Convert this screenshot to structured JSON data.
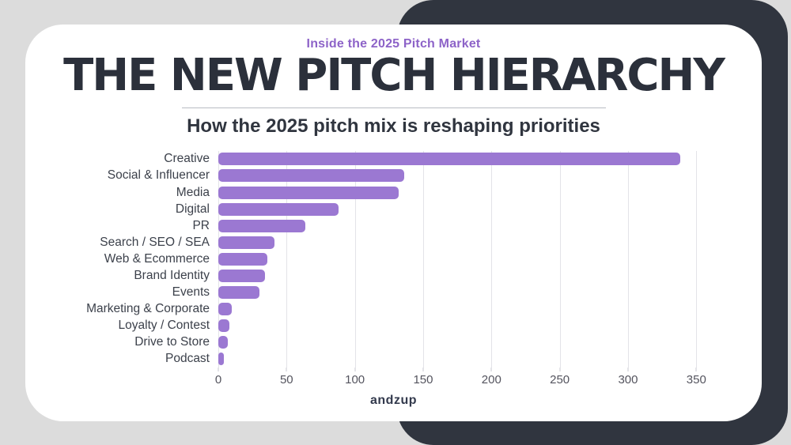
{
  "page": {
    "eyebrow": "Inside the 2025 Pitch Market",
    "title": "THE NEW PITCH HIERARCHY",
    "subtitle": "How the 2025 pitch mix is reshaping priorities",
    "logo_text": "andzup"
  },
  "colors": {
    "background": "#dcdcdc",
    "dark_panel": "#30353f",
    "card": "#ffffff",
    "accent_purple": "#8d63c8",
    "bar_purple": "#9b78d2",
    "title_text": "#2b303b",
    "category_text": "#3c414b",
    "tick_text": "#54545e"
  },
  "chart_data": {
    "type": "bar",
    "orientation": "horizontal",
    "title": "How the 2025 pitch mix is reshaping priorities",
    "categories": [
      "Creative",
      "Social & Influencer",
      "Media",
      "Digital",
      "PR",
      "Search / SEO / SEA",
      "Web & Ecommerce",
      "Brand Identity",
      "Events",
      "Marketing & Corporate",
      "Loyalty / Contest",
      "Drive to Store",
      "Podcast"
    ],
    "values": [
      338,
      136,
      132,
      88,
      64,
      41,
      36,
      34,
      30,
      10,
      8,
      7,
      4
    ],
    "xlabel": "",
    "ylabel": "",
    "xlim": [
      0,
      362
    ],
    "xticks": [
      0,
      50,
      100,
      150,
      200,
      250,
      300,
      350
    ],
    "grid": "vertical",
    "legend": "none"
  }
}
